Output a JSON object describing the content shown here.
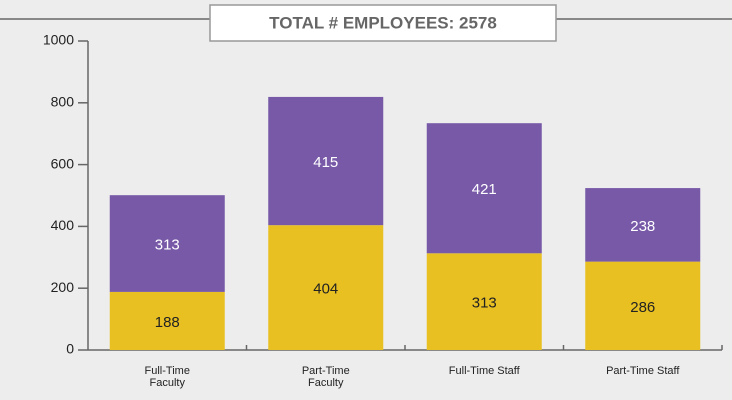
{
  "chart_data": {
    "type": "stacked_bar",
    "title": "TOTAL # EMPLOYEES: 2578",
    "categories": [
      "Full-Time Faculty",
      "Part-Time Faculty",
      "Full-Time Staff",
      "Part-Time Staff"
    ],
    "series": [
      {
        "color": "#e9c022",
        "values": [
          188,
          404,
          313,
          286
        ]
      },
      {
        "color": "#7759a8",
        "values": [
          313,
          415,
          421,
          238
        ]
      }
    ],
    "ylim": [
      0,
      1000
    ],
    "yticks": [
      0,
      200,
      400,
      600,
      800,
      1000
    ],
    "grid": false
  }
}
